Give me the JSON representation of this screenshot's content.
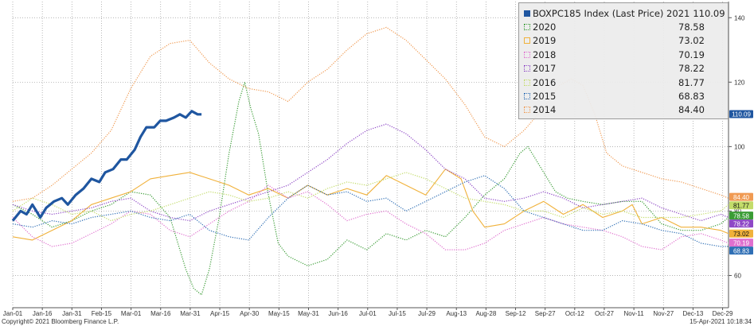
{
  "chart_data": {
    "type": "line",
    "ylim": [
      50,
      145
    ],
    "y_ticks": [
      60,
      80,
      100,
      120,
      140
    ],
    "x_ticks": [
      "Jan-01",
      "Jan-16",
      "Jan-31",
      "Feb-15",
      "Mar-01",
      "Mar-16",
      "Mar-31",
      "Apr-15",
      "Apr-30",
      "May-15",
      "May-31",
      "Jun-16",
      "Jul-01",
      "Jul-15",
      "Jul-29",
      "Aug-13",
      "Aug-28",
      "Sep-12",
      "Sep-27",
      "Oct-12",
      "Oct-27",
      "Nov-11",
      "Nov-27",
      "Dec-13",
      "Dec-29"
    ],
    "grid": true,
    "legend_position": "top-right",
    "legend_title": "BOXPC185 Index (Last Price) 2021",
    "footer_left": "Copyright© 2021 Bloomberg Finance L.P.",
    "footer_right": "15-Apr-2021 10:18:34",
    "series": [
      {
        "name": "2021",
        "legend_value": "110.09",
        "color": "#1f56a0",
        "style": "solid",
        "points": [
          [
            0,
            77
          ],
          [
            4,
            80
          ],
          [
            7,
            79
          ],
          [
            10,
            82
          ],
          [
            14,
            78
          ],
          [
            17,
            81
          ],
          [
            21,
            83
          ],
          [
            25,
            84
          ],
          [
            28,
            82
          ],
          [
            32,
            85
          ],
          [
            36,
            87
          ],
          [
            40,
            90
          ],
          [
            44,
            89
          ],
          [
            47,
            92
          ],
          [
            51,
            93
          ],
          [
            55,
            96
          ],
          [
            58,
            96
          ],
          [
            62,
            99
          ],
          [
            65,
            103
          ],
          [
            68,
            106
          ],
          [
            72,
            106
          ],
          [
            75,
            108
          ],
          [
            78,
            108
          ],
          [
            82,
            109
          ],
          [
            85,
            110
          ],
          [
            88,
            109
          ],
          [
            91,
            111
          ],
          [
            94,
            110
          ],
          [
            96,
            110
          ]
        ]
      },
      {
        "name": "2020",
        "legend_value": "78.58",
        "color": "#3a9c35",
        "style": "dotted",
        "points": [
          [
            0,
            82
          ],
          [
            10,
            79
          ],
          [
            20,
            75
          ],
          [
            30,
            77
          ],
          [
            40,
            80
          ],
          [
            50,
            82
          ],
          [
            60,
            86
          ],
          [
            70,
            85
          ],
          [
            80,
            78
          ],
          [
            88,
            62
          ],
          [
            92,
            56
          ],
          [
            96,
            54
          ],
          [
            100,
            62
          ],
          [
            105,
            78
          ],
          [
            110,
            98
          ],
          [
            115,
            114
          ],
          [
            118,
            120
          ],
          [
            121,
            112
          ],
          [
            125,
            104
          ],
          [
            130,
            85
          ],
          [
            135,
            70
          ],
          [
            140,
            66
          ],
          [
            150,
            63
          ],
          [
            160,
            65
          ],
          [
            170,
            71
          ],
          [
            180,
            68
          ],
          [
            190,
            73
          ],
          [
            200,
            71
          ],
          [
            210,
            74
          ],
          [
            220,
            72
          ],
          [
            230,
            78
          ],
          [
            240,
            85
          ],
          [
            250,
            90
          ],
          [
            258,
            98
          ],
          [
            262,
            100
          ],
          [
            266,
            96
          ],
          [
            270,
            92
          ],
          [
            276,
            86
          ],
          [
            282,
            84
          ],
          [
            290,
            83
          ],
          [
            300,
            82
          ],
          [
            310,
            83
          ],
          [
            320,
            83
          ],
          [
            330,
            76
          ],
          [
            340,
            74
          ],
          [
            350,
            74
          ],
          [
            360,
            76
          ],
          [
            364,
            78
          ]
        ]
      },
      {
        "name": "2019",
        "legend_value": "73.02",
        "color": "#f0b13a",
        "style": "solid",
        "points": [
          [
            0,
            72
          ],
          [
            10,
            71
          ],
          [
            20,
            74
          ],
          [
            30,
            77
          ],
          [
            40,
            82
          ],
          [
            50,
            84
          ],
          [
            60,
            86
          ],
          [
            70,
            90
          ],
          [
            80,
            91
          ],
          [
            90,
            92
          ],
          [
            100,
            90
          ],
          [
            110,
            88
          ],
          [
            120,
            85
          ],
          [
            130,
            87
          ],
          [
            140,
            84
          ],
          [
            150,
            88
          ],
          [
            160,
            85
          ],
          [
            170,
            87
          ],
          [
            180,
            85
          ],
          [
            190,
            91
          ],
          [
            200,
            88
          ],
          [
            210,
            85
          ],
          [
            220,
            93
          ],
          [
            228,
            90
          ],
          [
            234,
            80
          ],
          [
            240,
            75
          ],
          [
            250,
            76
          ],
          [
            260,
            80
          ],
          [
            270,
            83
          ],
          [
            280,
            79
          ],
          [
            290,
            82
          ],
          [
            300,
            78
          ],
          [
            310,
            80
          ],
          [
            315,
            82
          ],
          [
            320,
            76
          ],
          [
            330,
            78
          ],
          [
            340,
            75
          ],
          [
            350,
            75
          ],
          [
            360,
            74
          ],
          [
            364,
            73
          ]
        ]
      },
      {
        "name": "2018",
        "legend_value": "70.19",
        "color": "#e070cf",
        "style": "dotted",
        "points": [
          [
            0,
            78
          ],
          [
            10,
            72
          ],
          [
            20,
            69
          ],
          [
            30,
            70
          ],
          [
            40,
            73
          ],
          [
            50,
            76
          ],
          [
            60,
            80
          ],
          [
            70,
            79
          ],
          [
            80,
            74
          ],
          [
            90,
            72
          ],
          [
            100,
            76
          ],
          [
            110,
            80
          ],
          [
            120,
            83
          ],
          [
            130,
            88
          ],
          [
            140,
            84
          ],
          [
            150,
            86
          ],
          [
            160,
            82
          ],
          [
            170,
            77
          ],
          [
            180,
            79
          ],
          [
            190,
            80
          ],
          [
            200,
            76
          ],
          [
            210,
            73
          ],
          [
            220,
            68
          ],
          [
            230,
            68
          ],
          [
            240,
            70
          ],
          [
            250,
            74
          ],
          [
            260,
            76
          ],
          [
            270,
            78
          ],
          [
            280,
            76
          ],
          [
            290,
            75
          ],
          [
            300,
            74
          ],
          [
            310,
            72
          ],
          [
            320,
            69
          ],
          [
            330,
            68
          ],
          [
            340,
            72
          ],
          [
            350,
            73
          ],
          [
            360,
            71
          ],
          [
            364,
            70
          ]
        ]
      },
      {
        "name": "2017",
        "legend_value": "78.22",
        "color": "#8e48c6",
        "style": "dotted",
        "points": [
          [
            0,
            82
          ],
          [
            10,
            80
          ],
          [
            20,
            79
          ],
          [
            30,
            80
          ],
          [
            40,
            81
          ],
          [
            50,
            83
          ],
          [
            60,
            84
          ],
          [
            70,
            80
          ],
          [
            80,
            78
          ],
          [
            90,
            77
          ],
          [
            100,
            80
          ],
          [
            110,
            82
          ],
          [
            120,
            84
          ],
          [
            130,
            86
          ],
          [
            140,
            88
          ],
          [
            150,
            92
          ],
          [
            160,
            96
          ],
          [
            170,
            101
          ],
          [
            180,
            105
          ],
          [
            190,
            107
          ],
          [
            200,
            104
          ],
          [
            210,
            99
          ],
          [
            220,
            93
          ],
          [
            230,
            90
          ],
          [
            240,
            84
          ],
          [
            250,
            83
          ],
          [
            260,
            84
          ],
          [
            270,
            86
          ],
          [
            280,
            84
          ],
          [
            290,
            81
          ],
          [
            300,
            82
          ],
          [
            310,
            83
          ],
          [
            320,
            84
          ],
          [
            330,
            81
          ],
          [
            340,
            79
          ],
          [
            350,
            77
          ],
          [
            360,
            79
          ],
          [
            364,
            78
          ]
        ]
      },
      {
        "name": "2016",
        "legend_value": "81.77",
        "color": "#c3dc6a",
        "style": "dotted",
        "points": [
          [
            0,
            80
          ],
          [
            10,
            84
          ],
          [
            20,
            82
          ],
          [
            30,
            79
          ],
          [
            40,
            80
          ],
          [
            50,
            77
          ],
          [
            60,
            79
          ],
          [
            70,
            80
          ],
          [
            80,
            82
          ],
          [
            90,
            84
          ],
          [
            100,
            86
          ],
          [
            110,
            85
          ],
          [
            120,
            83
          ],
          [
            130,
            84
          ],
          [
            140,
            86
          ],
          [
            150,
            84
          ],
          [
            160,
            87
          ],
          [
            170,
            89
          ],
          [
            180,
            88
          ],
          [
            190,
            90
          ],
          [
            200,
            92
          ],
          [
            210,
            90
          ],
          [
            220,
            87
          ],
          [
            230,
            84
          ],
          [
            240,
            83
          ],
          [
            250,
            82
          ],
          [
            260,
            80
          ],
          [
            270,
            80
          ],
          [
            280,
            78
          ],
          [
            290,
            81
          ],
          [
            300,
            79
          ],
          [
            310,
            80
          ],
          [
            320,
            78
          ],
          [
            330,
            78
          ],
          [
            340,
            78
          ],
          [
            350,
            79
          ],
          [
            360,
            80
          ],
          [
            364,
            82
          ]
        ]
      },
      {
        "name": "2015",
        "legend_value": "68.83",
        "color": "#2f6fb5",
        "style": "dotted",
        "points": [
          [
            0,
            76
          ],
          [
            10,
            75
          ],
          [
            20,
            77
          ],
          [
            30,
            76
          ],
          [
            40,
            78
          ],
          [
            50,
            79
          ],
          [
            60,
            80
          ],
          [
            70,
            78
          ],
          [
            80,
            77
          ],
          [
            90,
            79
          ],
          [
            100,
            74
          ],
          [
            110,
            72
          ],
          [
            120,
            71
          ],
          [
            130,
            78
          ],
          [
            140,
            84
          ],
          [
            150,
            88
          ],
          [
            160,
            85
          ],
          [
            170,
            86
          ],
          [
            180,
            83
          ],
          [
            190,
            84
          ],
          [
            200,
            80
          ],
          [
            210,
            83
          ],
          [
            220,
            86
          ],
          [
            230,
            89
          ],
          [
            240,
            91
          ],
          [
            250,
            87
          ],
          [
            260,
            80
          ],
          [
            270,
            78
          ],
          [
            280,
            76
          ],
          [
            290,
            74
          ],
          [
            300,
            74
          ],
          [
            310,
            77
          ],
          [
            320,
            76
          ],
          [
            330,
            74
          ],
          [
            340,
            73
          ],
          [
            350,
            70
          ],
          [
            360,
            69
          ],
          [
            364,
            69
          ]
        ]
      },
      {
        "name": "2014",
        "legend_value": "84.40",
        "color": "#f09a52",
        "style": "dotted",
        "points": [
          [
            0,
            83
          ],
          [
            10,
            84
          ],
          [
            20,
            88
          ],
          [
            30,
            93
          ],
          [
            40,
            98
          ],
          [
            50,
            105
          ],
          [
            60,
            118
          ],
          [
            70,
            128
          ],
          [
            80,
            132
          ],
          [
            90,
            133
          ],
          [
            100,
            126
          ],
          [
            110,
            121
          ],
          [
            120,
            118
          ],
          [
            130,
            117
          ],
          [
            140,
            114
          ],
          [
            150,
            120
          ],
          [
            160,
            124
          ],
          [
            170,
            130
          ],
          [
            180,
            135
          ],
          [
            190,
            137
          ],
          [
            200,
            133
          ],
          [
            210,
            127
          ],
          [
            220,
            121
          ],
          [
            230,
            113
          ],
          [
            240,
            103
          ],
          [
            250,
            100
          ],
          [
            260,
            105
          ],
          [
            270,
            112
          ],
          [
            278,
            119
          ],
          [
            284,
            121
          ],
          [
            290,
            119
          ],
          [
            296,
            110
          ],
          [
            302,
            98
          ],
          [
            310,
            94
          ],
          [
            320,
            92
          ],
          [
            330,
            90
          ],
          [
            340,
            89
          ],
          [
            350,
            87
          ],
          [
            360,
            85
          ],
          [
            364,
            84
          ]
        ]
      }
    ]
  }
}
